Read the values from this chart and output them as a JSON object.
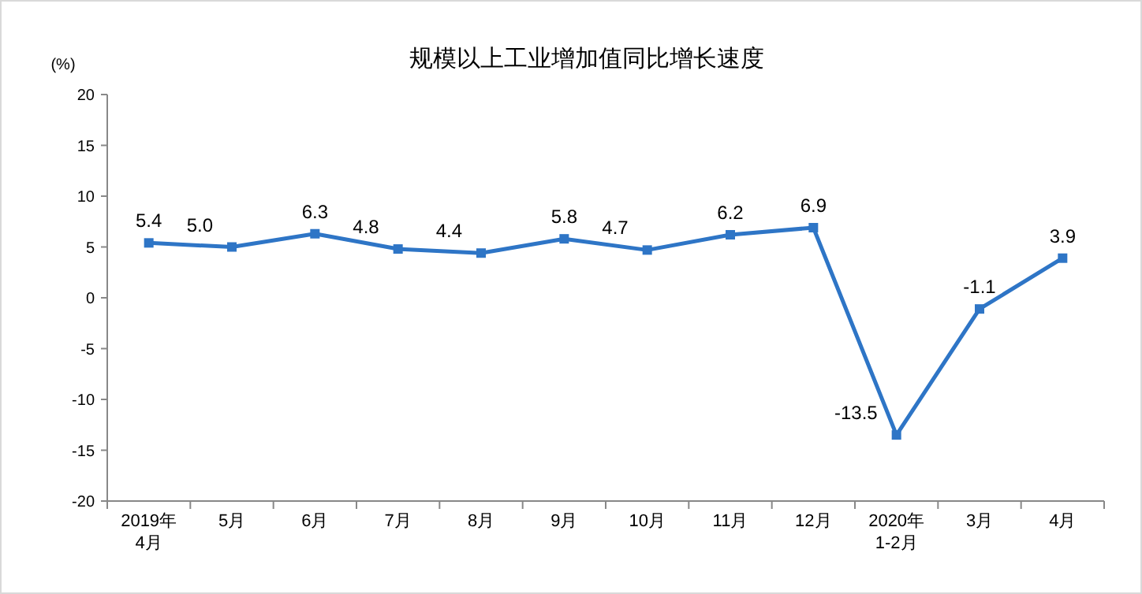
{
  "chart_data": {
    "type": "line",
    "title": "规模以上工业增加值同比增长速度",
    "ylabel": "(%)",
    "categories": [
      "2019年\n4月",
      "5月",
      "6月",
      "7月",
      "8月",
      "9月",
      "10月",
      "11月",
      "12月",
      "2020年\n1-2月",
      "3月",
      "4月"
    ],
    "series": [
      {
        "color": "#2e75c6",
        "values": [
          5.4,
          5.0,
          6.3,
          4.8,
          4.4,
          5.8,
          4.7,
          6.2,
          6.9,
          -13.5,
          -1.1,
          3.9
        ],
        "value_labels": [
          "5.4",
          "5.0",
          "6.3",
          "4.8",
          "4.4",
          "5.8",
          "4.7",
          "6.2",
          "6.9",
          "-13.5",
          "-1.1",
          "3.9"
        ]
      }
    ],
    "ylim": [
      -20,
      20
    ],
    "yticks": [
      -20,
      -15,
      -10,
      -5,
      0,
      5,
      10,
      15,
      20
    ],
    "marker": "square",
    "line_style": "solid",
    "grid": false
  }
}
